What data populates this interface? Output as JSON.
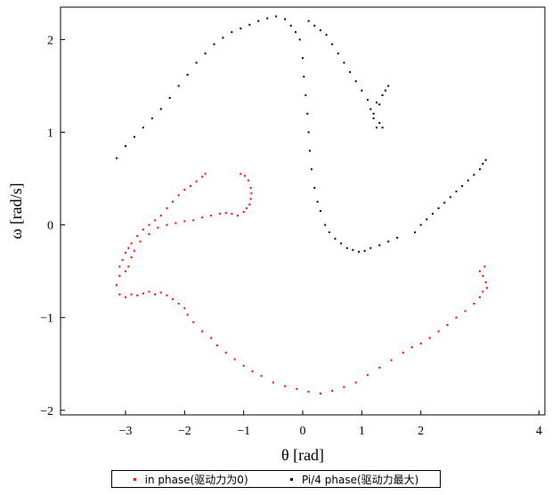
{
  "chart_data": {
    "type": "scatter",
    "xlabel": "θ [rad]",
    "ylabel": "ω [rad/s]",
    "xlim": [
      -4.1,
      4.1
    ],
    "ylim": [
      -2.05,
      2.35
    ],
    "x_ticks": [
      -3,
      -2,
      -1,
      0,
      1,
      2,
      4
    ],
    "x_tick_labels": [
      "−3",
      "−2",
      "−1",
      "0",
      "1",
      "2",
      "4"
    ],
    "y_ticks": [
      -2,
      -1,
      0,
      1,
      2
    ],
    "y_tick_labels": [
      "−2",
      "−1",
      "0",
      "1",
      "2"
    ],
    "grid": false,
    "legend_position": "bottom",
    "series": [
      {
        "name": "in phase(驱动力为0)",
        "color": "#ff0000",
        "points": [
          [
            -3.1,
            -0.45
          ],
          [
            -3.05,
            -0.38
          ],
          [
            -3.0,
            -0.3
          ],
          [
            -2.95,
            -0.25
          ],
          [
            -2.9,
            -0.2
          ],
          [
            -2.8,
            -0.12
          ],
          [
            -2.7,
            -0.05
          ],
          [
            -2.6,
            0.0
          ],
          [
            -2.5,
            0.05
          ],
          [
            -2.4,
            0.1
          ],
          [
            -2.3,
            0.18
          ],
          [
            -2.2,
            0.25
          ],
          [
            -2.1,
            0.32
          ],
          [
            -2.0,
            0.38
          ],
          [
            -1.9,
            0.42
          ],
          [
            -1.8,
            0.47
          ],
          [
            -1.7,
            0.52
          ],
          [
            -1.65,
            0.55
          ],
          [
            -3.15,
            -0.65
          ],
          [
            -3.1,
            -0.55
          ],
          [
            -3.0,
            -0.5
          ],
          [
            -2.95,
            -0.45
          ],
          [
            -2.9,
            -0.35
          ],
          [
            -2.85,
            -0.28
          ],
          [
            -2.75,
            -0.18
          ],
          [
            -2.6,
            -0.1
          ],
          [
            -2.45,
            -0.03
          ],
          [
            -2.3,
            0.0
          ],
          [
            -2.15,
            0.02
          ],
          [
            -2.0,
            0.04
          ],
          [
            -1.85,
            0.05
          ],
          [
            -1.7,
            0.08
          ],
          [
            -1.55,
            0.1
          ],
          [
            -1.4,
            0.12
          ],
          [
            -1.3,
            0.13
          ],
          [
            -1.2,
            0.12
          ],
          [
            -1.1,
            0.1
          ],
          [
            -1.0,
            0.14
          ],
          [
            -0.95,
            0.18
          ],
          [
            -0.9,
            0.22
          ],
          [
            -0.88,
            0.28
          ],
          [
            -0.87,
            0.34
          ],
          [
            -0.88,
            0.4
          ],
          [
            -0.92,
            0.48
          ],
          [
            -0.98,
            0.53
          ],
          [
            -1.05,
            0.55
          ],
          [
            -3.1,
            -0.75
          ],
          [
            -3.0,
            -0.78
          ],
          [
            -2.9,
            -0.75
          ],
          [
            -2.8,
            -0.76
          ],
          [
            -2.7,
            -0.74
          ],
          [
            -2.6,
            -0.72
          ],
          [
            -2.5,
            -0.75
          ],
          [
            -2.4,
            -0.73
          ],
          [
            -2.3,
            -0.76
          ],
          [
            -2.2,
            -0.8
          ],
          [
            -2.1,
            -0.85
          ],
          [
            -2.0,
            -0.9
          ],
          [
            -1.95,
            -0.97
          ],
          [
            -1.85,
            -1.05
          ],
          [
            -1.7,
            -1.15
          ],
          [
            -1.55,
            -1.22
          ],
          [
            -1.45,
            -1.3
          ],
          [
            -1.3,
            -1.38
          ],
          [
            -1.15,
            -1.45
          ],
          [
            -1.0,
            -1.52
          ],
          [
            -0.85,
            -1.58
          ],
          [
            -0.7,
            -1.63
          ],
          [
            -0.5,
            -1.7
          ],
          [
            -0.3,
            -1.74
          ],
          [
            -0.1,
            -1.77
          ],
          [
            0.1,
            -1.8
          ],
          [
            0.3,
            -1.82
          ],
          [
            0.5,
            -1.79
          ],
          [
            0.7,
            -1.75
          ],
          [
            0.9,
            -1.7
          ],
          [
            1.1,
            -1.62
          ],
          [
            1.3,
            -1.54
          ],
          [
            1.5,
            -1.46
          ],
          [
            1.7,
            -1.38
          ],
          [
            1.85,
            -1.32
          ],
          [
            2.0,
            -1.28
          ],
          [
            2.15,
            -1.22
          ],
          [
            2.3,
            -1.15
          ],
          [
            2.45,
            -1.08
          ],
          [
            2.6,
            -1.0
          ],
          [
            2.75,
            -0.93
          ],
          [
            2.9,
            -0.85
          ],
          [
            3.0,
            -0.78
          ],
          [
            3.05,
            -0.72
          ],
          [
            3.1,
            -0.62
          ],
          [
            3.05,
            -0.55
          ],
          [
            3.0,
            -0.5
          ],
          [
            3.08,
            -0.45
          ],
          [
            3.12,
            -0.68
          ]
        ]
      },
      {
        "name": "Pi/4 phase(驱动力最大)",
        "color": "#000000",
        "points": [
          [
            -3.15,
            0.72
          ],
          [
            -3.0,
            0.85
          ],
          [
            -2.85,
            0.95
          ],
          [
            -2.7,
            1.05
          ],
          [
            -2.55,
            1.15
          ],
          [
            -2.4,
            1.25
          ],
          [
            -2.25,
            1.37
          ],
          [
            -2.1,
            1.5
          ],
          [
            -1.95,
            1.62
          ],
          [
            -1.8,
            1.75
          ],
          [
            -1.65,
            1.85
          ],
          [
            -1.5,
            1.95
          ],
          [
            -1.35,
            2.02
          ],
          [
            -1.2,
            2.08
          ],
          [
            -1.05,
            2.12
          ],
          [
            -0.9,
            2.16
          ],
          [
            -0.75,
            2.2
          ],
          [
            -0.6,
            2.23
          ],
          [
            -0.45,
            2.25
          ],
          [
            -0.3,
            2.22
          ],
          [
            -0.2,
            2.15
          ],
          [
            -0.12,
            2.08
          ],
          [
            -0.05,
            2.0
          ],
          [
            0.0,
            1.8
          ],
          [
            0.02,
            1.6
          ],
          [
            0.05,
            1.4
          ],
          [
            0.08,
            1.2
          ],
          [
            0.1,
            1.0
          ],
          [
            0.12,
            0.8
          ],
          [
            0.15,
            0.6
          ],
          [
            0.2,
            0.4
          ],
          [
            0.25,
            0.25
          ],
          [
            0.3,
            0.15
          ],
          [
            0.38,
            0.0
          ],
          [
            0.45,
            -0.08
          ],
          [
            0.55,
            -0.15
          ],
          [
            0.65,
            -0.2
          ],
          [
            0.75,
            -0.25
          ],
          [
            0.85,
            -0.27
          ],
          [
            0.95,
            -0.29
          ],
          [
            1.05,
            -0.28
          ],
          [
            1.15,
            -0.25
          ],
          [
            1.3,
            -0.22
          ],
          [
            1.45,
            -0.18
          ],
          [
            1.6,
            -0.14
          ],
          [
            0.1,
            2.2
          ],
          [
            0.2,
            2.15
          ],
          [
            0.3,
            2.1
          ],
          [
            0.4,
            2.05
          ],
          [
            0.5,
            1.95
          ],
          [
            0.6,
            1.85
          ],
          [
            0.7,
            1.75
          ],
          [
            0.8,
            1.65
          ],
          [
            0.9,
            1.55
          ],
          [
            1.0,
            1.45
          ],
          [
            1.1,
            1.35
          ],
          [
            1.15,
            1.25
          ],
          [
            1.2,
            1.15
          ],
          [
            1.25,
            1.05
          ],
          [
            1.3,
            1.3
          ],
          [
            1.35,
            1.4
          ],
          [
            1.4,
            1.45
          ],
          [
            1.45,
            1.5
          ],
          [
            1.2,
            1.2
          ],
          [
            1.25,
            1.32
          ],
          [
            1.3,
            1.1
          ],
          [
            1.35,
            1.05
          ],
          [
            1.9,
            -0.08
          ],
          [
            2.0,
            0.0
          ],
          [
            2.1,
            0.06
          ],
          [
            2.2,
            0.12
          ],
          [
            2.3,
            0.18
          ],
          [
            2.4,
            0.24
          ],
          [
            2.5,
            0.3
          ],
          [
            2.6,
            0.36
          ],
          [
            2.7,
            0.42
          ],
          [
            2.8,
            0.48
          ],
          [
            2.9,
            0.54
          ],
          [
            3.0,
            0.6
          ],
          [
            3.05,
            0.66
          ],
          [
            3.1,
            0.7
          ]
        ]
      }
    ]
  }
}
